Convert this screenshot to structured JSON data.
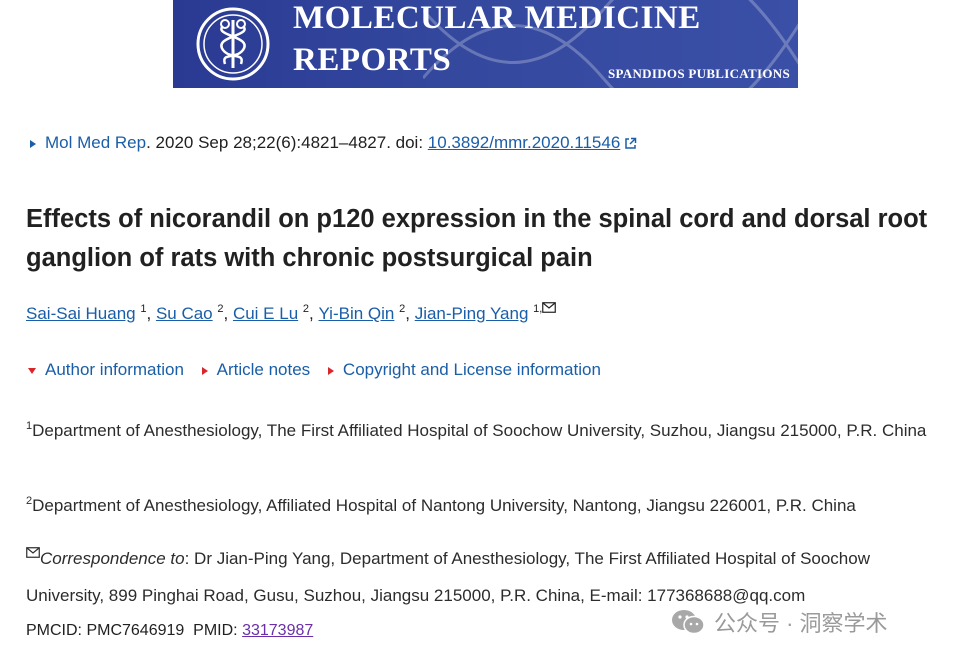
{
  "banner": {
    "line1": "MOLECULAR MEDICINE",
    "line2": "REPORTS",
    "publisher": "SPANDIDOS PUBLICATIONS",
    "color": "#2f4199"
  },
  "citation": {
    "journal_link": "Mol Med Rep",
    "text": ". 2020 Sep 28;22(6):4821–4827. doi: ",
    "doi": "10.3892/mmr.2020.11546"
  },
  "article": {
    "title": "Effects of nicorandil on p120 expression in the spinal cord and dorsal root ganglion of rats with chronic postsurgical pain"
  },
  "authors": [
    {
      "name": "Sai-Sai Huang",
      "sup": "1"
    },
    {
      "name": "Su Cao",
      "sup": "2"
    },
    {
      "name": "Cui E Lu",
      "sup": "2"
    },
    {
      "name": "Yi-Bin Qin",
      "sup": "2"
    },
    {
      "name": "Jian-Ping Yang",
      "sup": "1,"
    }
  ],
  "toggles": {
    "author_info": "Author information",
    "article_notes": "Article notes",
    "copyright": "Copyright and License information"
  },
  "affiliations": [
    {
      "sup": "1",
      "text": "Department of Anesthesiology, The First Affiliated Hospital of Soochow University, Suzhou, Jiangsu 215000, P.R. China"
    },
    {
      "sup": "2",
      "text": "Department of Anesthesiology, Affiliated Hospital of Nantong University, Nantong, Jiangsu 226001, P.R. China"
    }
  ],
  "correspondence": {
    "label": "Correspondence to",
    "text": ": Dr Jian-Ping Yang, Department of Anesthesiology, The First Affiliated Hospital of Soochow University, 899 Pinghai Road, Gusu, Suzhou, Jiangsu 215000, P.R. China, E-mail: 177368688@qq.com"
  },
  "ids": {
    "pmcid_label": "PMCID: PMC7646919  PMID: ",
    "pmid_link": "33173987"
  },
  "watermark": {
    "text": "公众号 · 洞察学术"
  },
  "colors": {
    "link": "#1a5ea8",
    "toggle_arrow": "#d9262b",
    "visited": "#6a2ea8"
  },
  "icons": [
    "external-link-icon",
    "mail-icon",
    "wechat-icon",
    "journal-seal-icon"
  ]
}
